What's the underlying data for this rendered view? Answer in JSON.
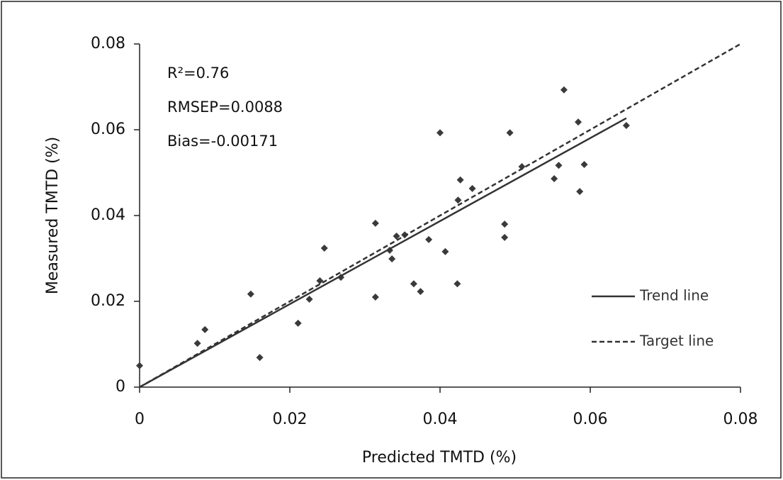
{
  "chart_data": {
    "type": "scatter",
    "xlabel": "Predicted TMTD (%)",
    "ylabel": "Measured TMTD (%)",
    "annotations": [
      "R²=0.76",
      "RMSEP=0.0088",
      "Bias=-0.00171"
    ],
    "x": [
      0,
      0.0077,
      0.0087,
      0.0148,
      0.016,
      0.0211,
      0.0226,
      0.024,
      0.0246,
      0.0268,
      0.0314,
      0.0314,
      0.0333,
      0.0336,
      0.0342,
      0.0353,
      0.0365,
      0.0374,
      0.0385,
      0.04,
      0.0407,
      0.0423,
      0.0424,
      0.0427,
      0.0443,
      0.0486,
      0.0486,
      0.0493,
      0.0509,
      0.0552,
      0.0558,
      0.0565,
      0.0584,
      0.0586,
      0.0592,
      0.0648
    ],
    "y": [
      0.005,
      0.0102,
      0.0134,
      0.0217,
      0.0069,
      0.0149,
      0.0205,
      0.0248,
      0.0324,
      0.0256,
      0.021,
      0.0382,
      0.0319,
      0.0299,
      0.0352,
      0.0355,
      0.0241,
      0.0223,
      0.0344,
      0.0593,
      0.0316,
      0.0241,
      0.0436,
      0.0483,
      0.0463,
      0.0349,
      0.038,
      0.0593,
      0.0514,
      0.0486,
      0.0517,
      0.0693,
      0.0618,
      0.0456,
      0.0519,
      0.061
    ],
    "color": "#3a3a3a",
    "lines": [
      {
        "name": "Trend line",
        "x": [
          0,
          0.0648
        ],
        "y": [
          0,
          0.0627
        ],
        "color": "#333333",
        "dashed": false
      },
      {
        "name": "Target line",
        "x": [
          0,
          0.08
        ],
        "y": [
          0,
          0.08
        ],
        "color": "#333333",
        "dashed": true
      }
    ],
    "xlim": [
      0,
      0.08
    ],
    "ylim": [
      0,
      0.08
    ],
    "xticks": [
      0,
      0.02,
      0.04,
      0.06,
      0.08
    ],
    "yticks": [
      0,
      0.02,
      0.04,
      0.06,
      0.08
    ]
  }
}
